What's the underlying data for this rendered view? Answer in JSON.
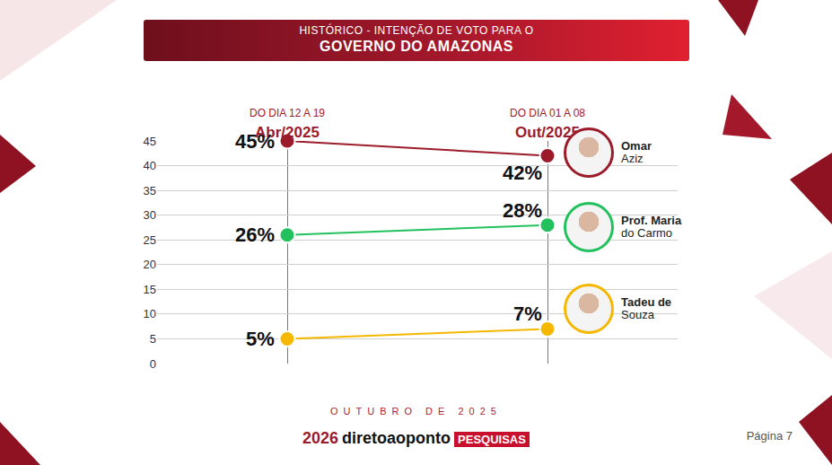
{
  "chart_data": {
    "type": "line",
    "header": "HISTÓRICO - INTENÇÃO DE VOTO PARA O",
    "title": "GOVERNO DO AMAZONAS",
    "categories": [
      "Abr/2025",
      "Out/2025"
    ],
    "category_periods": [
      "DO DIA 12 A 19",
      "DO DIA 01 A 08"
    ],
    "series": [
      {
        "name": "Omar Aziz",
        "color": "#9b1b2a",
        "values": [
          45,
          42
        ],
        "value_labels": [
          "45%",
          "42%"
        ]
      },
      {
        "name": "Prof. Maria do Carmo",
        "color": "#22c15e",
        "values": [
          26,
          28
        ],
        "value_labels": [
          "26%",
          "28%"
        ]
      },
      {
        "name": "Tadeu de Souza",
        "color": "#f5b700",
        "values": [
          5,
          7
        ],
        "value_labels": [
          "5%",
          "7%"
        ]
      }
    ],
    "ylim": [
      0,
      45
    ],
    "yticks": [
      0,
      5,
      10,
      15,
      20,
      25,
      30,
      35,
      40,
      45
    ],
    "grid": true,
    "data_labels": true,
    "marker": "circle",
    "footer": "OUTUBRO DE 2025",
    "logo": [
      "2026",
      "diretoaoponto",
      "PESQUISAS"
    ],
    "page": "Página 7"
  }
}
